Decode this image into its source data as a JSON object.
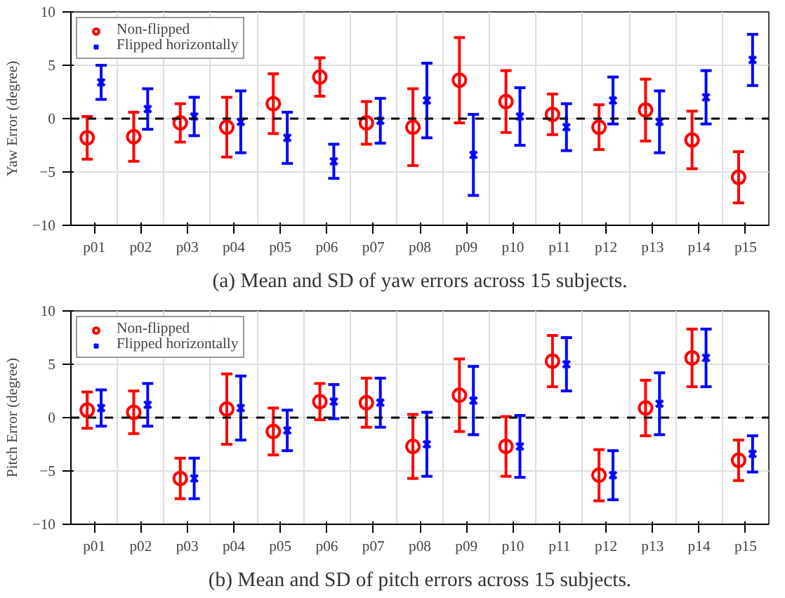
{
  "chart_data": [
    {
      "type": "scatter",
      "title": "(a) Mean and SD of yaw errors across 15 subjects.",
      "ylabel": "Yaw Error (degree)",
      "categories": [
        "p01",
        "p02",
        "p03",
        "p04",
        "p05",
        "p06",
        "p07",
        "p08",
        "p09",
        "p10",
        "p11",
        "p12",
        "p13",
        "p14",
        "p15"
      ],
      "ylim": [
        -10,
        10
      ],
      "yticks": [
        -10,
        -5,
        0,
        5,
        10
      ],
      "grid": true,
      "legend": "top left",
      "ref_lines": [
        {
          "axis": "y",
          "value": 0,
          "color": "#000000",
          "line_style": "dashed"
        }
      ],
      "series": [
        {
          "name": "Non-flipped",
          "color": "#ff0000",
          "marker": "circle",
          "values": [
            -1.8,
            -1.7,
            -0.4,
            -0.8,
            1.4,
            3.9,
            -0.4,
            -0.8,
            3.6,
            1.6,
            0.4,
            -0.8,
            0.8,
            -2.0,
            -5.5
          ],
          "errors": [
            2.0,
            2.3,
            1.8,
            2.8,
            2.8,
            1.8,
            2.0,
            3.6,
            4.0,
            2.9,
            1.9,
            2.1,
            2.9,
            2.7,
            2.4
          ]
        },
        {
          "name": "Flipped horizontally",
          "color": "#0000ff",
          "marker": "cross",
          "values": [
            3.4,
            0.9,
            0.2,
            -0.3,
            -1.8,
            -4.0,
            -0.2,
            1.7,
            -3.4,
            0.2,
            -0.8,
            1.7,
            -0.3,
            2.0,
            5.5
          ],
          "errors": [
            1.6,
            1.9,
            1.8,
            2.9,
            2.4,
            1.6,
            2.1,
            3.5,
            3.8,
            2.7,
            2.2,
            2.2,
            2.9,
            2.5,
            2.4
          ]
        }
      ]
    },
    {
      "type": "scatter",
      "title": "(b) Mean and SD of pitch errors across 15 subjects.",
      "ylabel": "Pitch Error (degree)",
      "categories": [
        "p01",
        "p02",
        "p03",
        "p04",
        "p05",
        "p06",
        "p07",
        "p08",
        "p09",
        "p10",
        "p11",
        "p12",
        "p13",
        "p14",
        "p15"
      ],
      "ylim": [
        -10,
        10
      ],
      "yticks": [
        -10,
        -5,
        0,
        5,
        10
      ],
      "grid": true,
      "legend": "top left",
      "ref_lines": [
        {
          "axis": "y",
          "value": 0,
          "color": "#000000",
          "line_style": "dashed"
        }
      ],
      "series": [
        {
          "name": "Non-flipped",
          "color": "#ff0000",
          "marker": "circle",
          "values": [
            0.7,
            0.5,
            -5.7,
            0.8,
            -1.3,
            1.5,
            1.4,
            -2.7,
            2.1,
            -2.7,
            5.3,
            -5.4,
            0.9,
            5.6,
            -4.0
          ],
          "errors": [
            1.7,
            2.0,
            1.9,
            3.3,
            2.2,
            1.7,
            2.3,
            3.0,
            3.4,
            2.8,
            2.4,
            2.4,
            2.6,
            2.7,
            1.9
          ]
        },
        {
          "name": "Flipped horizontally",
          "color": "#0000ff",
          "marker": "cross",
          "values": [
            0.9,
            1.2,
            -5.7,
            0.9,
            -1.2,
            1.5,
            1.4,
            -2.5,
            1.6,
            -2.7,
            5.0,
            -5.4,
            1.3,
            5.6,
            -3.4
          ],
          "errors": [
            1.7,
            2.0,
            1.9,
            3.0,
            1.9,
            1.6,
            2.3,
            3.0,
            3.2,
            2.9,
            2.5,
            2.3,
            2.9,
            2.7,
            1.7
          ]
        }
      ]
    }
  ]
}
